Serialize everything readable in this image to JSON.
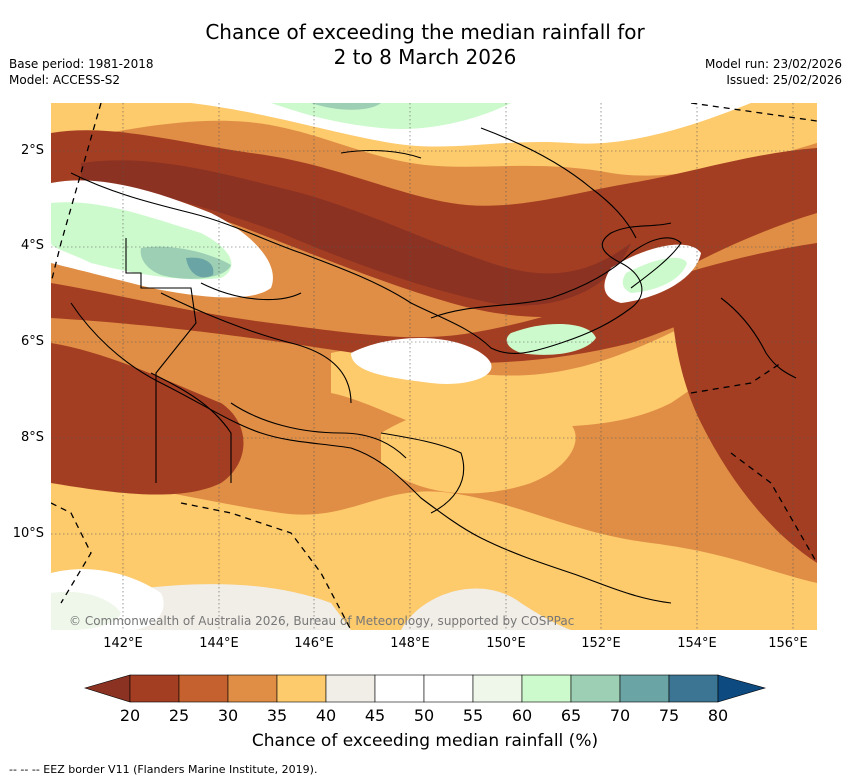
{
  "title": {
    "line1": "Chance of exceeding the median rainfall for",
    "line2": "2 to 8 March 2026"
  },
  "meta": {
    "base_period": "Base period: 1981-2018",
    "model": "Model: ACCESS-S2",
    "model_run": "Model run: 23/02/2026",
    "issued": "Issued: 25/02/2026"
  },
  "axes": {
    "lat_labels": [
      "2°S",
      "4°S",
      "6°S",
      "8°S",
      "10°S"
    ],
    "lon_labels": [
      "142°E",
      "144°E",
      "146°E",
      "148°E",
      "150°E",
      "152°E",
      "154°E",
      "156°E"
    ]
  },
  "credit": "© Commonwealth of Australia 2026, Bureau of Meteorology, supported by COSPPac",
  "colorbar": {
    "ticks": [
      "20",
      "25",
      "30",
      "35",
      "40",
      "45",
      "50",
      "55",
      "60",
      "65",
      "70",
      "75",
      "80"
    ],
    "colors": [
      "#a43e22",
      "#c4612f",
      "#e08e45",
      "#fdca6c",
      "#f1ede7",
      "#ffffff",
      "#ffffff",
      "#eef7ea",
      "#ccfacc",
      "#9ccfb4",
      "#6aa4a4",
      "#3b7593"
    ],
    "under_color": "#8b3222",
    "over_color": "#0d4a80",
    "label": "Chance of exceeding median rainfall (%)"
  },
  "footnote": "--  --  -- EEZ border V11 (Flanders Marine Institute, 2019)."
}
